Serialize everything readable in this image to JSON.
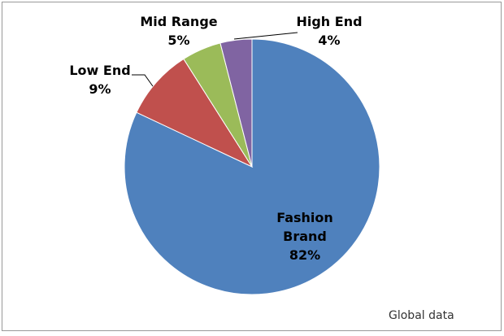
{
  "chart_data": {
    "type": "pie",
    "categories": [
      "Fashion Brand",
      "Low End",
      "Mid Range",
      "High End"
    ],
    "values": [
      82,
      9,
      5,
      4
    ],
    "value_labels": [
      "82%",
      "9%",
      "5%",
      "4%"
    ],
    "colors": [
      "#4f81bd",
      "#c0504d",
      "#9bbb59",
      "#8064a2"
    ],
    "note": "Global data"
  }
}
